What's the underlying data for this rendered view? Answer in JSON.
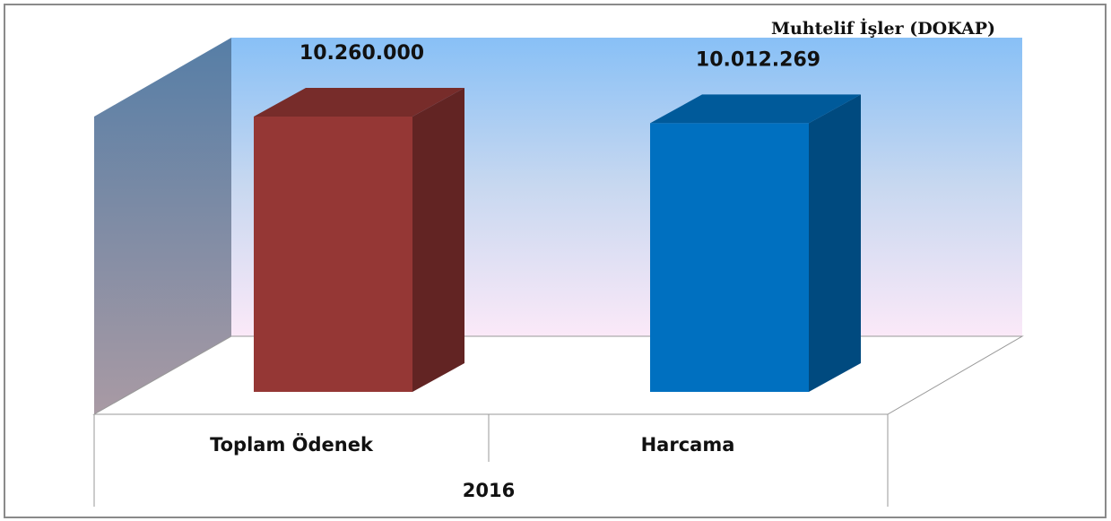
{
  "chart_data": {
    "type": "bar3d",
    "title": "Muhtelif İşler (DOKAP)",
    "categories": [
      "Toplam Ödenek",
      "Harcama"
    ],
    "values": [
      10260000,
      10012269
    ],
    "value_labels": [
      "10.260.000",
      "10.012.269"
    ],
    "colors": [
      "#953735",
      "#0070c0"
    ],
    "group_label": "2016"
  }
}
